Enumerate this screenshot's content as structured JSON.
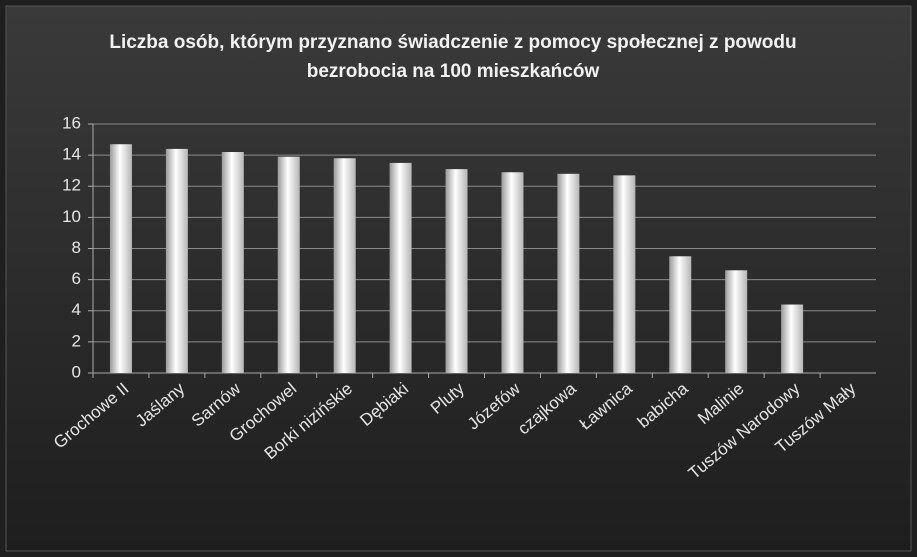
{
  "chart_data": {
    "type": "bar",
    "title": "Liczba osób, którym przyznano świadczenie z pomocy społecznej z powodu bezrobocia na 100 mieszkańców",
    "categories": [
      "Grochowe II",
      "Jaślany",
      "Sarnów",
      "Grochowel",
      "Borki nizińskie",
      "Dębiaki",
      "Pluty",
      "Józefów",
      "czajkowa",
      "Ławnica",
      "babicha",
      "Malinie",
      "Tuszów Narodowy",
      "Tuszów Mały"
    ],
    "values": [
      14.7,
      14.4,
      14.2,
      13.9,
      13.8,
      13.5,
      13.1,
      12.9,
      12.8,
      12.7,
      7.5,
      6.6,
      4.4,
      0
    ],
    "color": "#ffffff",
    "ylim": [
      0,
      16
    ],
    "yticks": [
      0,
      2,
      4,
      6,
      8,
      10,
      12,
      14,
      16
    ],
    "grid": true
  }
}
